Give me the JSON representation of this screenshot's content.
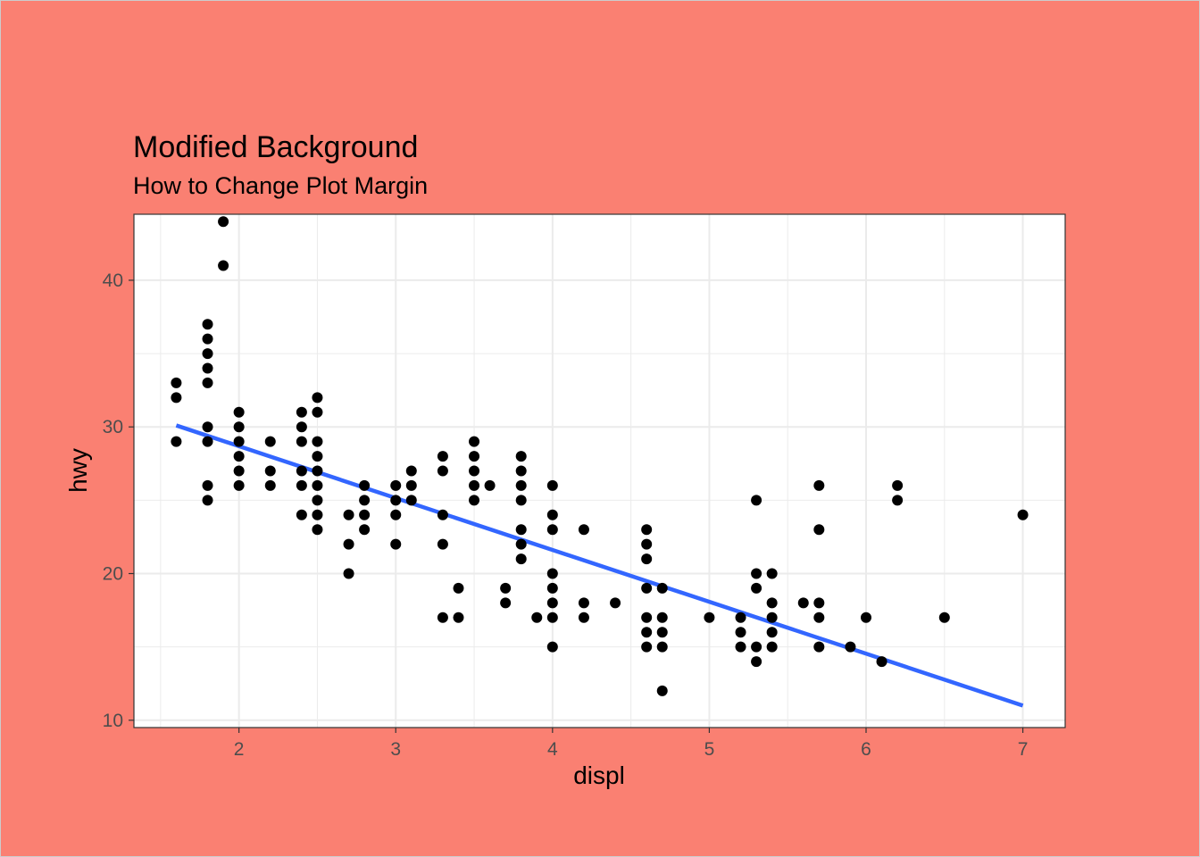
{
  "chart_data": {
    "type": "scatter",
    "title": "Modified Background",
    "subtitle": "How to Change Plot Margin",
    "xlabel": "displ",
    "ylabel": "hwy",
    "xlim": [
      1.33,
      7.27
    ],
    "ylim": [
      9.5,
      44.5
    ],
    "x_ticks": [
      2,
      3,
      4,
      5,
      6,
      7
    ],
    "y_ticks": [
      10,
      20,
      30,
      40
    ],
    "grid": true,
    "colors": {
      "background": "#FA8072",
      "panel": "#FFFFFF",
      "grid": "#EBEBEB",
      "points": "#000000",
      "trend_line": "#3366FF",
      "panel_border": "#333333"
    },
    "points": [
      [
        1.6,
        33
      ],
      [
        1.6,
        32
      ],
      [
        1.6,
        29
      ],
      [
        1.8,
        37
      ],
      [
        1.8,
        36
      ],
      [
        1.8,
        35
      ],
      [
        1.8,
        34
      ],
      [
        1.8,
        33
      ],
      [
        1.8,
        30
      ],
      [
        1.8,
        29
      ],
      [
        1.8,
        26
      ],
      [
        1.8,
        25
      ],
      [
        1.9,
        44
      ],
      [
        1.9,
        41
      ],
      [
        2.0,
        31
      ],
      [
        2.0,
        30
      ],
      [
        2.0,
        29
      ],
      [
        2.0,
        28
      ],
      [
        2.0,
        27
      ],
      [
        2.0,
        26
      ],
      [
        2.2,
        29
      ],
      [
        2.2,
        27
      ],
      [
        2.2,
        26
      ],
      [
        2.4,
        31
      ],
      [
        2.4,
        30
      ],
      [
        2.4,
        29
      ],
      [
        2.4,
        27
      ],
      [
        2.4,
        26
      ],
      [
        2.4,
        24
      ],
      [
        2.5,
        32
      ],
      [
        2.5,
        31
      ],
      [
        2.5,
        29
      ],
      [
        2.5,
        28
      ],
      [
        2.5,
        27
      ],
      [
        2.5,
        26
      ],
      [
        2.5,
        25
      ],
      [
        2.5,
        24
      ],
      [
        2.5,
        23
      ],
      [
        2.7,
        24
      ],
      [
        2.7,
        22
      ],
      [
        2.7,
        20
      ],
      [
        2.8,
        26
      ],
      [
        2.8,
        25
      ],
      [
        2.8,
        24
      ],
      [
        2.8,
        23
      ],
      [
        3.0,
        26
      ],
      [
        3.0,
        25
      ],
      [
        3.0,
        24
      ],
      [
        3.0,
        22
      ],
      [
        3.1,
        27
      ],
      [
        3.1,
        26
      ],
      [
        3.1,
        25
      ],
      [
        3.3,
        28
      ],
      [
        3.3,
        27
      ],
      [
        3.3,
        24
      ],
      [
        3.3,
        22
      ],
      [
        3.3,
        17
      ],
      [
        3.4,
        19
      ],
      [
        3.4,
        17
      ],
      [
        3.5,
        29
      ],
      [
        3.5,
        28
      ],
      [
        3.5,
        27
      ],
      [
        3.5,
        26
      ],
      [
        3.5,
        25
      ],
      [
        3.6,
        26
      ],
      [
        3.7,
        19
      ],
      [
        3.7,
        18
      ],
      [
        3.8,
        28
      ],
      [
        3.8,
        27
      ],
      [
        3.8,
        26
      ],
      [
        3.8,
        25
      ],
      [
        3.8,
        23
      ],
      [
        3.8,
        22
      ],
      [
        3.8,
        21
      ],
      [
        3.9,
        17
      ],
      [
        4.0,
        26
      ],
      [
        4.0,
        24
      ],
      [
        4.0,
        23
      ],
      [
        4.0,
        20
      ],
      [
        4.0,
        19
      ],
      [
        4.0,
        18
      ],
      [
        4.0,
        17
      ],
      [
        4.0,
        15
      ],
      [
        4.2,
        23
      ],
      [
        4.2,
        18
      ],
      [
        4.2,
        17
      ],
      [
        4.4,
        18
      ],
      [
        4.6,
        23
      ],
      [
        4.6,
        22
      ],
      [
        4.6,
        21
      ],
      [
        4.6,
        19
      ],
      [
        4.6,
        17
      ],
      [
        4.6,
        16
      ],
      [
        4.6,
        15
      ],
      [
        4.7,
        19
      ],
      [
        4.7,
        17
      ],
      [
        4.7,
        16
      ],
      [
        4.7,
        15
      ],
      [
        4.7,
        12
      ],
      [
        5.0,
        17
      ],
      [
        5.2,
        17
      ],
      [
        5.2,
        16
      ],
      [
        5.2,
        15
      ],
      [
        5.3,
        25
      ],
      [
        5.3,
        20
      ],
      [
        5.3,
        19
      ],
      [
        5.3,
        15
      ],
      [
        5.3,
        14
      ],
      [
        5.4,
        20
      ],
      [
        5.4,
        18
      ],
      [
        5.4,
        17
      ],
      [
        5.4,
        16
      ],
      [
        5.4,
        15
      ],
      [
        5.6,
        18
      ],
      [
        5.7,
        26
      ],
      [
        5.7,
        23
      ],
      [
        5.7,
        18
      ],
      [
        5.7,
        17
      ],
      [
        5.7,
        15
      ],
      [
        5.9,
        15
      ],
      [
        6.0,
        17
      ],
      [
        6.1,
        14
      ],
      [
        6.2,
        26
      ],
      [
        6.2,
        25
      ],
      [
        6.5,
        17
      ],
      [
        7.0,
        24
      ]
    ],
    "trend_line": [
      [
        1.6,
        30.1
      ],
      [
        7.0,
        11.0
      ]
    ]
  }
}
